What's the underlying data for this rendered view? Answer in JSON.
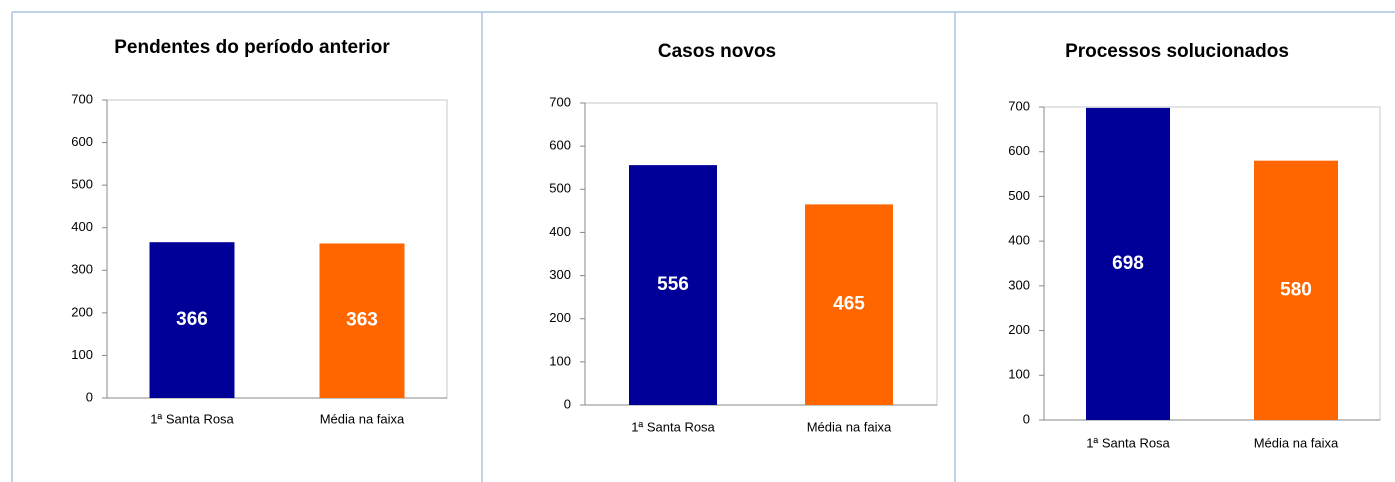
{
  "chart_data": [
    {
      "type": "bar",
      "title": "Pendentes do período anterior",
      "categories": [
        "1ª Santa Rosa",
        "Média na faixa"
      ],
      "values": [
        366,
        363
      ],
      "colors": [
        "#000099",
        "#ff6600"
      ],
      "ylim": [
        0,
        700
      ],
      "yticks": [
        0,
        100,
        200,
        300,
        400,
        500,
        600,
        700
      ]
    },
    {
      "type": "bar",
      "title": "Casos novos",
      "categories": [
        "1ª Santa Rosa",
        "Média na faixa"
      ],
      "values": [
        556,
        465
      ],
      "colors": [
        "#000099",
        "#ff6600"
      ],
      "ylim": [
        0,
        700
      ],
      "yticks": [
        0,
        100,
        200,
        300,
        400,
        500,
        600,
        700
      ]
    },
    {
      "type": "bar",
      "title": "Processos solucionados",
      "categories": [
        "1ª Santa Rosa",
        "Média na faixa"
      ],
      "values": [
        698,
        580
      ],
      "colors": [
        "#000099",
        "#ff6600"
      ],
      "ylim": [
        0,
        700
      ],
      "yticks": [
        0,
        100,
        200,
        300,
        400,
        500,
        600,
        700
      ]
    }
  ]
}
